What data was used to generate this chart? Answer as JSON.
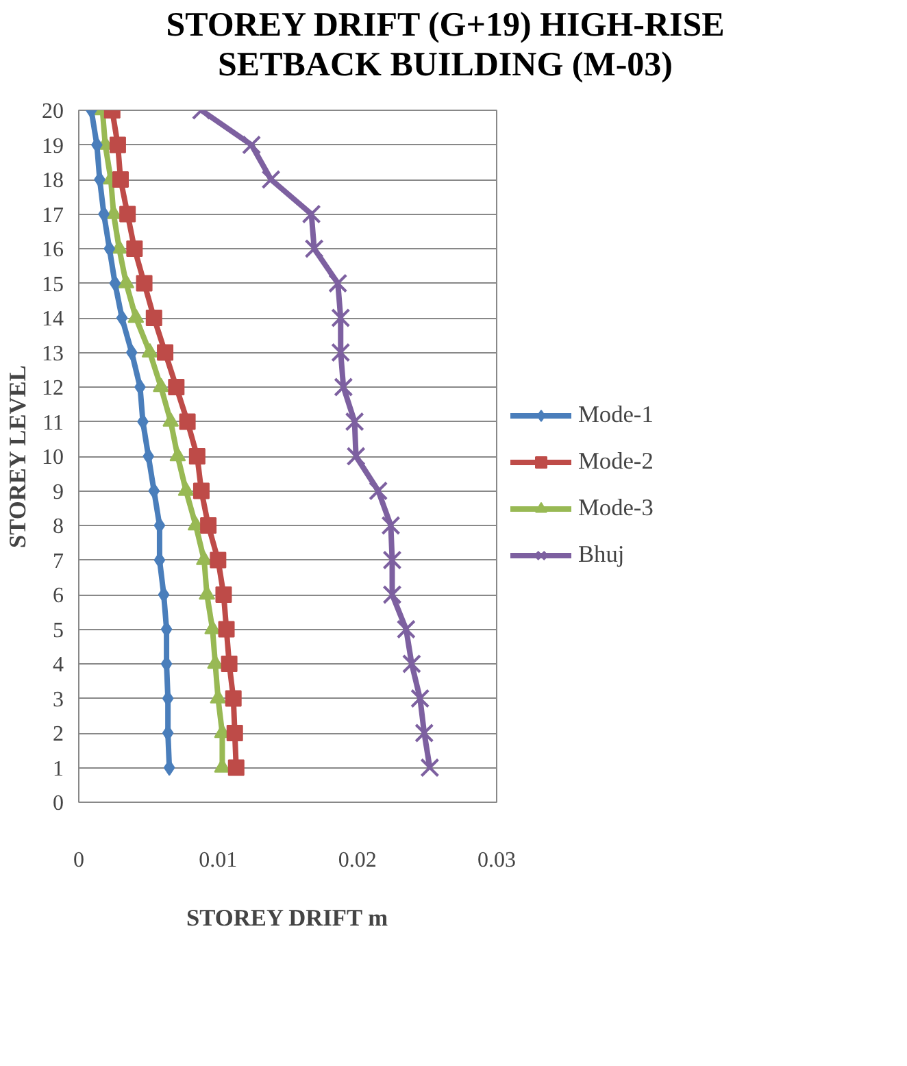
{
  "chart_data": {
    "type": "line",
    "title": "STOREY DRIFT (G+19) HIGH-RISE SETBACK BUILDING (M-03)",
    "xlabel": "STOREY DRIFT m",
    "ylabel": "STOREY LEVEL",
    "xlim": [
      0,
      0.03
    ],
    "xticks": [
      0,
      0.01,
      0.02,
      0.03
    ],
    "ylim": [
      0,
      20
    ],
    "yticks": [
      0,
      1,
      2,
      3,
      4,
      5,
      6,
      7,
      8,
      9,
      10,
      11,
      12,
      13,
      14,
      15,
      16,
      17,
      18,
      19,
      20
    ],
    "grid": "y",
    "legend": "right",
    "line_style": "solid",
    "series": [
      {
        "name": "Mode-1",
        "color": "#4a7ebb",
        "marker": "diamond",
        "x": [
          0.0065,
          0.0064,
          0.0064,
          0.0063,
          0.0063,
          0.0061,
          0.0058,
          0.0058,
          0.0054,
          0.005,
          0.0046,
          0.0044,
          0.0038,
          0.0031,
          0.0026,
          0.0022,
          0.0018,
          0.0015,
          0.0013,
          0.0009
        ],
        "values": [
          1,
          2,
          3,
          4,
          5,
          6,
          7,
          8,
          9,
          10,
          11,
          12,
          13,
          14,
          15,
          16,
          17,
          18,
          19,
          20
        ]
      },
      {
        "name": "Mode-2",
        "color": "#be4b48",
        "marker": "square",
        "x": [
          0.0113,
          0.0112,
          0.0111,
          0.0108,
          0.0106,
          0.0104,
          0.01,
          0.0093,
          0.0088,
          0.0085,
          0.0078,
          0.007,
          0.0062,
          0.0054,
          0.0047,
          0.004,
          0.0035,
          0.003,
          0.0028,
          0.0024
        ],
        "values": [
          1,
          2,
          3,
          4,
          5,
          6,
          7,
          8,
          9,
          10,
          11,
          12,
          13,
          14,
          15,
          16,
          17,
          18,
          19,
          20
        ]
      },
      {
        "name": "Mode-3",
        "color": "#98b954",
        "marker": "triangle",
        "x": [
          0.0103,
          0.0103,
          0.01,
          0.0098,
          0.0096,
          0.0092,
          0.009,
          0.0084,
          0.0077,
          0.0071,
          0.0066,
          0.0059,
          0.0051,
          0.0041,
          0.0034,
          0.0029,
          0.0025,
          0.0023,
          0.0019,
          0.0017
        ],
        "values": [
          1,
          2,
          3,
          4,
          5,
          6,
          7,
          8,
          9,
          10,
          11,
          12,
          13,
          14,
          15,
          16,
          17,
          18,
          19,
          20
        ]
      },
      {
        "name": "Bhuj",
        "color": "#7d60a0",
        "marker": "cross",
        "x": [
          0.0252,
          0.0248,
          0.0245,
          0.0239,
          0.0235,
          0.0225,
          0.0225,
          0.0224,
          0.0215,
          0.0199,
          0.0198,
          0.019,
          0.0188,
          0.0188,
          0.0186,
          0.0169,
          0.0167,
          0.0138,
          0.0124,
          0.0088
        ],
        "values": [
          1,
          2,
          3,
          4,
          5,
          6,
          7,
          8,
          9,
          10,
          11,
          12,
          13,
          14,
          15,
          16,
          17,
          18,
          19,
          20
        ]
      }
    ]
  }
}
